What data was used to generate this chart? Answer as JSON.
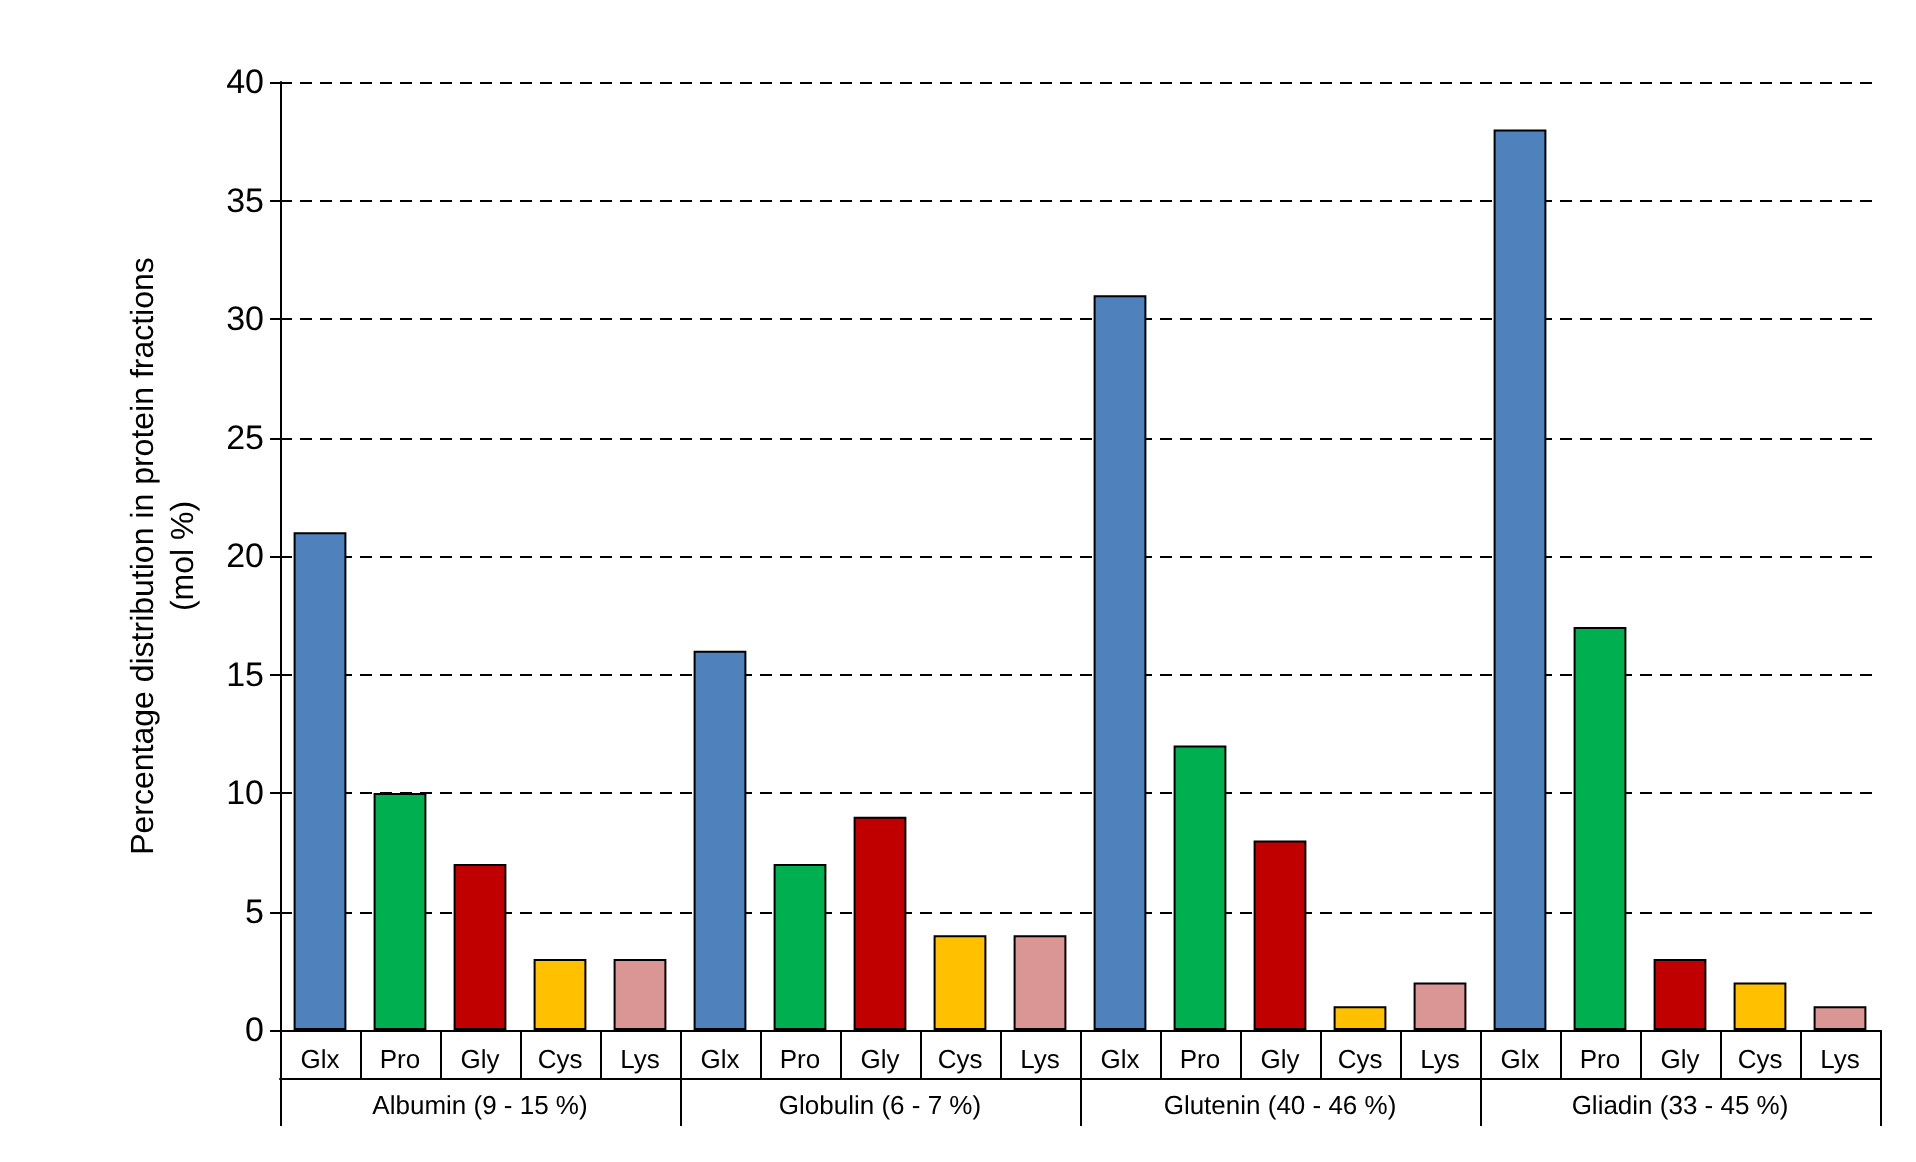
{
  "chart_data": {
    "type": "bar",
    "ylabel": "Percentage distribution in protein fractions\n(mol %)",
    "categories": [
      "Glx",
      "Pro",
      "Gly",
      "Cys",
      "Lys",
      "Glx",
      "Pro",
      "Gly",
      "Cys",
      "Lys",
      "Glx",
      "Pro",
      "Gly",
      "Cys",
      "Lys",
      "Glx",
      "Pro",
      "Gly",
      "Cys",
      "Lys"
    ],
    "values": [
      21,
      10,
      7,
      3,
      3,
      16,
      7,
      9,
      4,
      4,
      31,
      12,
      8,
      1,
      2,
      38,
      17,
      3,
      2,
      1
    ],
    "colors": [
      "#4f81bd",
      "#00b050",
      "#c00000",
      "#ffc000",
      "#d99694",
      "#4f81bd",
      "#00b050",
      "#c00000",
      "#ffc000",
      "#d99694",
      "#4f81bd",
      "#00b050",
      "#c00000",
      "#ffc000",
      "#d99694",
      "#4f81bd",
      "#00b050",
      "#c00000",
      "#ffc000",
      "#d99694"
    ],
    "annotations": [
      "Albumin (9 - 15 %)",
      "Globulin (6 - 7 %)",
      "Glutenin (40 - 46 %)",
      "Gliadin (33 - 45 %)"
    ],
    "ylim": [
      0,
      40
    ],
    "yticks": [
      0,
      5,
      10,
      15,
      20,
      25,
      30,
      35,
      40
    ],
    "grid": "y"
  }
}
